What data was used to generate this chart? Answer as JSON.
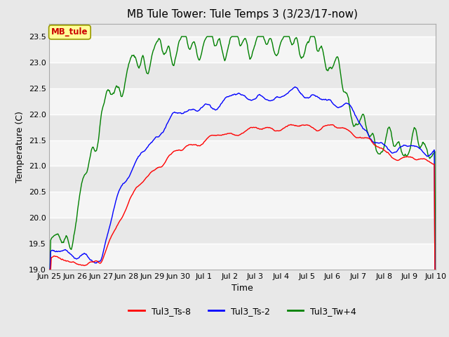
{
  "title": "MB Tule Tower: Tule Temps 3 (3/23/17-now)",
  "xlabel": "Time",
  "ylabel": "Temperature (C)",
  "ylim": [
    19.0,
    23.75
  ],
  "yticks": [
    19.0,
    19.5,
    20.0,
    20.5,
    21.0,
    21.5,
    22.0,
    22.5,
    23.0,
    23.5
  ],
  "xtick_labels": [
    "Jun 25",
    "Jun 26",
    "Jun 27",
    "Jun 28",
    "Jun 29",
    "Jun 30",
    "Jul 1",
    "Jul 2",
    "Jul 3",
    "Jul 4",
    "Jul 5",
    "Jul 6",
    "Jul 7",
    "Jul 8",
    "Jul 9",
    "Jul 10"
  ],
  "legend_labels": [
    "Tul3_Ts-8",
    "Tul3_Ts-2",
    "Tul3_Tw+4"
  ],
  "line_colors": [
    "red",
    "blue",
    "green"
  ],
  "mb_tule_label": "MB_tule",
  "mb_tule_color": "#cc0000",
  "mb_tule_bg": "#ffff99",
  "mb_tule_edge": "#999900",
  "background_color": "#e8e8e8",
  "band_color_light": "#e8e8e8",
  "band_color_white": "#f5f5f5",
  "grid_line_color": "#ffffff",
  "title_fontsize": 11,
  "label_fontsize": 9,
  "tick_fontsize": 8
}
